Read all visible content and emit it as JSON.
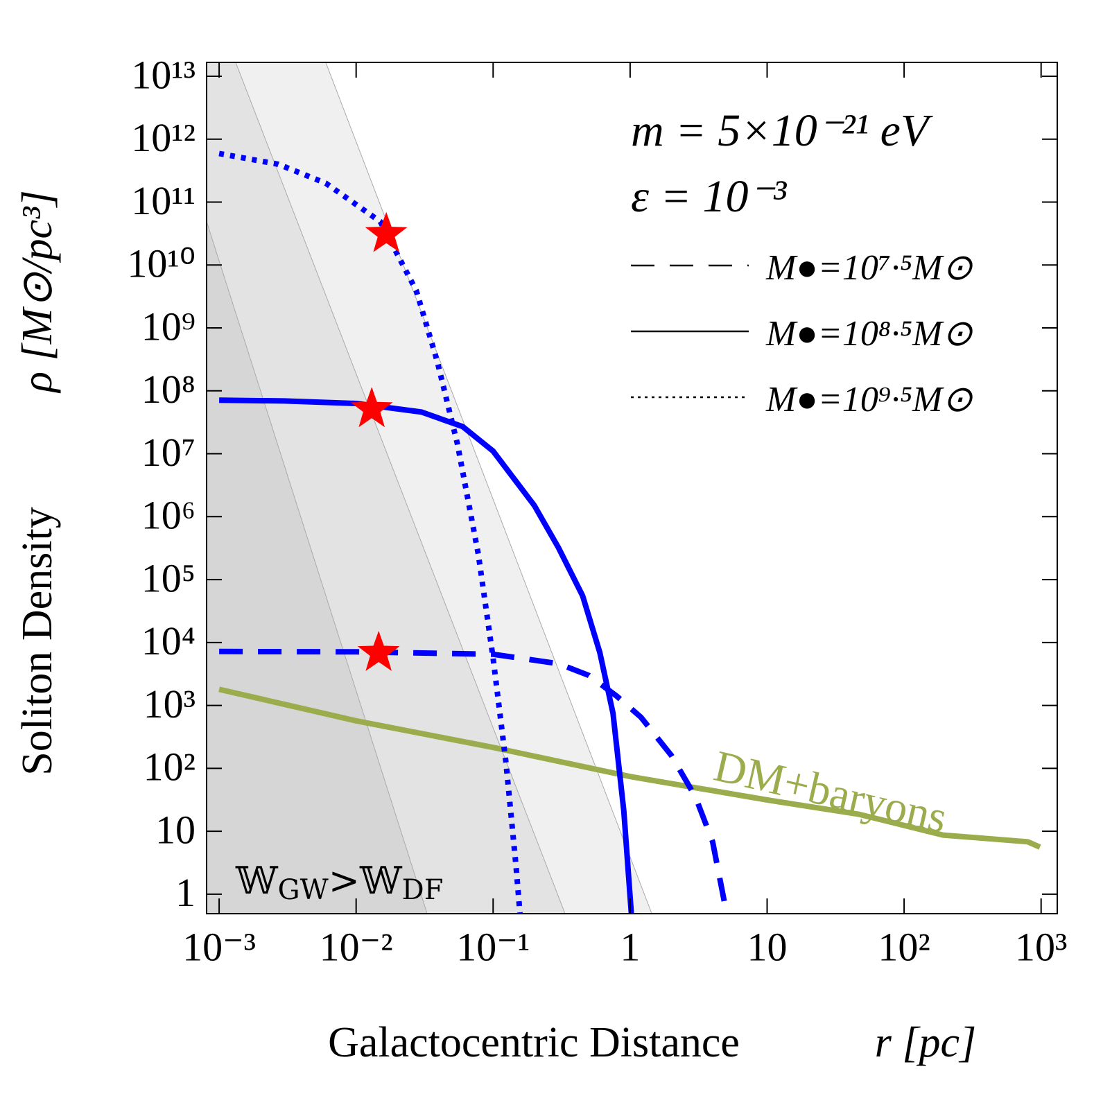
{
  "chart_data": {
    "type": "line",
    "xlabel": "Galactocentric Distance",
    "xlabel_symbol": "r [pc]",
    "ylabel": "Soliton Density",
    "ylabel_symbol": "ρ [M⊙/pc³]",
    "annotations": [
      "m = 5×10⁻²¹ eV",
      "ε = 10⁻³"
    ],
    "region_label": [
      "𝕎",
      "GW",
      ">𝕎",
      "DF"
    ],
    "log_x": true,
    "log_y": true,
    "xlim": [
      0.00081,
      1312
    ],
    "ylim": [
      0.49,
      16600000000000.0
    ],
    "xticks": [
      {
        "value": 0.001,
        "label": "10⁻³"
      },
      {
        "value": 0.01,
        "label": "10⁻²"
      },
      {
        "value": 0.1,
        "label": "10⁻¹"
      },
      1,
      10,
      {
        "value": 100,
        "label": "10²"
      },
      {
        "value": 1000,
        "label": "10³"
      }
    ],
    "yticks": [
      1,
      10,
      {
        "value": 100,
        "label": "10²"
      },
      {
        "value": 1000,
        "label": "10³"
      },
      {
        "value": 10000,
        "label": "10⁴"
      },
      {
        "value": 100000,
        "label": "10⁵"
      },
      {
        "value": 1000000,
        "label": "10⁶"
      },
      {
        "value": 10000000,
        "label": "10⁷"
      },
      {
        "value": 100000000,
        "label": "10⁸"
      },
      {
        "value": 1000000000,
        "label": "10⁹"
      },
      {
        "value": 10000000000,
        "label": "10¹⁰"
      },
      {
        "value": 100000000000,
        "label": "10¹¹"
      },
      {
        "value": 1000000000000,
        "label": "10¹²"
      },
      {
        "value": 10000000000000,
        "label": "10¹³"
      }
    ],
    "regions": [
      {
        "color": "#f0f0f0",
        "x": [
          0.006,
          1.44
        ],
        "y": [
          16600000000000.0,
          0.49
        ]
      },
      {
        "color": "#e3e3e3",
        "x": [
          0.00132,
          0.335
        ],
        "y": [
          16600000000000.0,
          0.49
        ]
      },
      {
        "color": "#d6d6d6",
        "x": [
          0.00081,
          0.033
        ],
        "y": [
          49000000000.0,
          0.49
        ]
      }
    ],
    "series": [
      {
        "name": "M●=10⁷·⁵M⊙",
        "color": "#0000ff",
        "dash": "dashed",
        "x": [
          0.001,
          0.01,
          0.1,
          0.3,
          0.5,
          0.8,
          1.2,
          2,
          3,
          4,
          5.06
        ],
        "values": [
          7200,
          7100,
          6500,
          4600,
          3000,
          1400,
          650,
          160,
          35,
          6.8,
          0.5
        ]
      },
      {
        "name": "M●=10⁸·⁵M⊙",
        "color": "#0000ff",
        "dash": "solid",
        "x": [
          0.001,
          0.003,
          0.01,
          0.03,
          0.06,
          0.1,
          0.2,
          0.3,
          0.45,
          0.6,
          0.75,
          0.9,
          1.02
        ],
        "values": [
          71000000,
          69000000,
          63000000,
          46000000,
          27000000,
          11000000,
          1500000,
          320000,
          55000,
          7000,
          750,
          21,
          0.5
        ]
      },
      {
        "name": "M●=10⁹·⁵M⊙",
        "color": "#0000ff",
        "dash": "dotted",
        "x": [
          0.001,
          0.0027,
          0.006,
          0.015,
          0.0275,
          0.039,
          0.055,
          0.078,
          0.1,
          0.124,
          0.147,
          0.157
        ],
        "values": [
          590000000000,
          400000000000,
          200000000000,
          49000000000,
          3900000000,
          300000000,
          14000000,
          250000,
          5600,
          126,
          2.8,
          0.5
        ]
      }
    ],
    "baryons": {
      "name": "DM+baryons",
      "color": "#9aac4c",
      "x": [
        0.001,
        0.01,
        0.1,
        1,
        10.4,
        47,
        192,
        800,
        980
      ],
      "values": [
        1800,
        570,
        215,
        74,
        31,
        18.6,
        8.7,
        6.8,
        5.6
      ]
    },
    "markers": {
      "color": "#ff0000",
      "x": [
        0.0166,
        0.013,
        0.0146
      ],
      "values": [
        31000000000,
        51000000,
        6800
      ]
    }
  }
}
